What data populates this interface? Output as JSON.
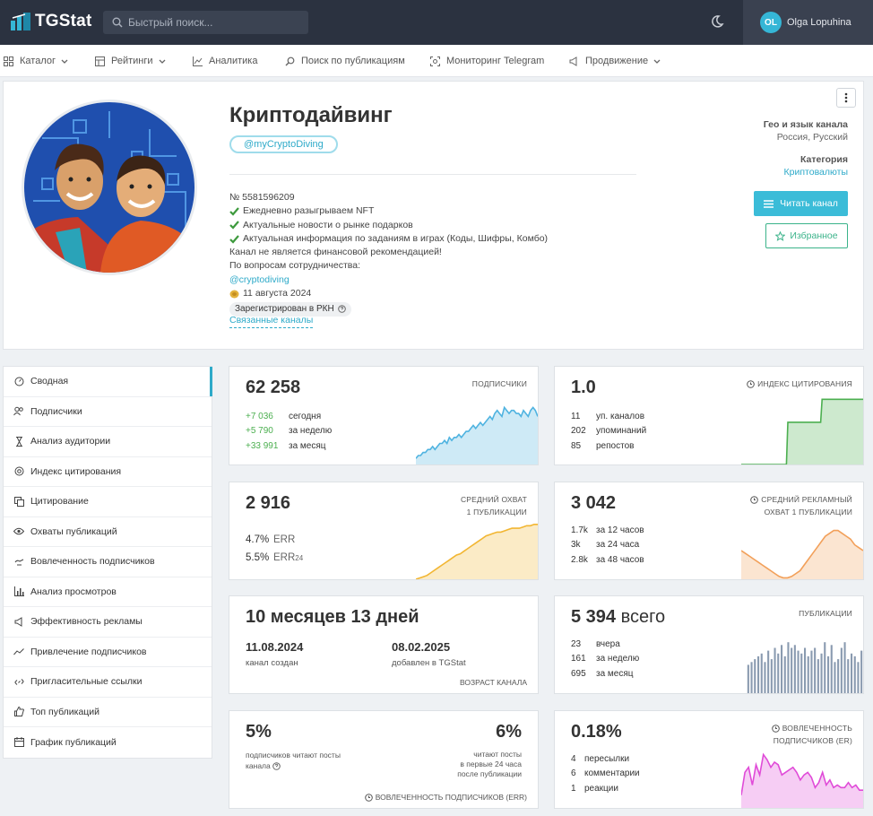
{
  "header": {
    "logo_text": "TGStat",
    "search_placeholder": "Быстрый поиск...",
    "user_initials": "OL",
    "user_name": "Olga Lopuhina",
    "accent": "#35b6d6"
  },
  "nav": {
    "catalog": "Каталог",
    "ratings": "Рейтинги",
    "analytics": "Аналитика",
    "search_pubs": "Поиск по публикациям",
    "monitoring": "Мониторинг Telegram",
    "promotion": "Продвижение"
  },
  "channel": {
    "title": "Криптодайвинг",
    "handle": "@myCryptoDiving",
    "number": "№ 5581596209",
    "lines": [
      "Ежедневно разыгрываем NFT",
      "Актуальные новости о рынке подарков",
      "Актуальная информация по заданиям в играх (Коды, Шифры, Комбо)"
    ],
    "disclaimer": "Канал не является финансовой рекомендацией!",
    "cooperation": "По вопросам сотрудничества:",
    "contact": "@cryptodiving",
    "date": "11 августа 2024",
    "rkn": "Зарегистрирован в РКН",
    "related": "Связанные каналы",
    "geo_label": "Гео и язык канала",
    "geo_value": "Россия, Русский",
    "category_label": "Категория",
    "category_value": "Криптовалюты",
    "read_button": "Читать канал",
    "fav_button": "Избранное"
  },
  "sidebar": {
    "items": [
      {
        "label": "Сводная",
        "icon": "dashboard-icon"
      },
      {
        "label": "Подписчики",
        "icon": "users-icon"
      },
      {
        "label": "Анализ аудитории",
        "icon": "hourglass-icon"
      },
      {
        "label": "Индекс цитирования",
        "icon": "at-icon"
      },
      {
        "label": "Цитирование",
        "icon": "copy-icon"
      },
      {
        "label": "Охваты публикаций",
        "icon": "eye-icon"
      },
      {
        "label": "Вовлеченность подписчиков",
        "icon": "hand-icon"
      },
      {
        "label": "Анализ просмотров",
        "icon": "bar-chart-icon"
      },
      {
        "label": "Эффективность рекламы",
        "icon": "megaphone-icon"
      },
      {
        "label": "Привлечение подписчиков",
        "icon": "trend-icon"
      },
      {
        "label": "Пригласительные ссылки",
        "icon": "link-icon"
      },
      {
        "label": "Топ публикаций",
        "icon": "thumbs-up-icon"
      },
      {
        "label": "График публикаций",
        "icon": "calendar-icon"
      }
    ]
  },
  "cards": {
    "subscribers": {
      "value": "62 258",
      "title": "ПОДПИСЧИКИ",
      "rows": [
        {
          "n": "+7 036",
          "t": "сегодня"
        },
        {
          "n": "+5 790",
          "t": "за неделю"
        },
        {
          "n": "+33 991",
          "t": "за месяц"
        }
      ]
    },
    "citation": {
      "value": "1.0",
      "title": "ИНДЕКС ЦИТИРОВАНИЯ",
      "rows": [
        {
          "n": "11",
          "t": "уп. каналов"
        },
        {
          "n": "202",
          "t": "упоминаний"
        },
        {
          "n": "85",
          "t": "репостов"
        }
      ]
    },
    "reach": {
      "value": "2 916",
      "title1": "СРЕДНИЙ ОХВАТ",
      "title2": "1 ПУБЛИКАЦИИ",
      "err_value": "4.7%",
      "err_label": "ERR",
      "err24_value": "5.5%",
      "err24_label": "ERR",
      "err24_sub": "24"
    },
    "ad_reach": {
      "value": "3 042",
      "title1": "СРЕДНИЙ РЕКЛАМНЫЙ",
      "title2": "ОХВАТ 1 ПУБЛИКАЦИИ",
      "rows": [
        {
          "n": "1.7k",
          "t": "за 12 часов"
        },
        {
          "n": "3k",
          "t": "за 24 часа"
        },
        {
          "n": "2.8k",
          "t": "за 48 часов"
        }
      ]
    },
    "age": {
      "value": "10 месяцев 13 дней",
      "created_date": "11.08.2024",
      "created_label": "канал создан",
      "added_date": "08.02.2025",
      "added_label": "добавлен в TGStat",
      "footer": "ВОЗРАСТ КАНАЛА"
    },
    "publications": {
      "value": "5 394",
      "value_suffix": "всего",
      "title": "ПУБЛИКАЦИИ",
      "rows": [
        {
          "n": "23",
          "t": "вчера"
        },
        {
          "n": "161",
          "t": "за неделю"
        },
        {
          "n": "695",
          "t": "за месяц"
        }
      ]
    },
    "engagement": {
      "left_value": "5%",
      "left_label1": "подписчиков читают посты",
      "left_label2": "канала",
      "right_value": "6%",
      "right_label1": "читают посты",
      "right_label2": "в первые 24 часа",
      "right_label3": "после публикации",
      "footer": "ВОВЛЕЧЕННОСТЬ ПОДПИСЧИКОВ (ERR)"
    },
    "er": {
      "value": "0.18%",
      "title1": "ВОВЛЕЧЕННОСТЬ",
      "title2": "ПОДПИСЧИКОВ (ER)",
      "rows": [
        {
          "n": "4",
          "t": "пересылки"
        },
        {
          "n": "6",
          "t": "комментарии"
        },
        {
          "n": "1",
          "t": "реакции"
        }
      ]
    }
  },
  "chart_data": [
    {
      "type": "area",
      "name": "subscribers",
      "color": "#4fb3e0",
      "values": [
        2,
        3,
        3,
        4,
        4,
        5,
        5,
        6,
        5,
        6,
        7,
        7,
        8,
        7,
        9,
        8,
        9,
        9,
        10,
        9,
        10,
        11,
        11,
        12,
        13,
        12,
        13,
        14,
        13,
        14,
        15,
        16,
        15,
        17,
        18,
        17,
        16,
        19,
        18,
        17,
        18,
        18,
        17,
        17,
        16,
        18,
        17,
        16,
        18,
        19,
        18,
        16
      ]
    },
    {
      "type": "area",
      "name": "citation",
      "color": "#4caf50",
      "values": [
        0,
        0,
        0,
        0,
        0,
        0,
        0,
        0,
        0,
        0,
        0,
        0,
        0,
        0,
        0,
        0,
        0,
        0,
        0,
        0,
        0,
        0,
        0,
        0,
        0,
        0,
        0,
        0,
        0,
        0,
        0,
        0,
        0,
        0,
        2.2,
        2.2,
        2.2,
        2.2,
        2.2,
        2.2,
        2.2,
        2.2,
        2.2,
        2.2,
        2.2,
        2.2,
        2.2,
        2.2,
        2.2,
        2.2,
        2.2,
        2.2,
        2.2,
        2.2,
        2.2,
        2.2,
        2.2,
        2.2,
        2.2,
        3.4,
        3.4,
        3.4,
        3.4,
        3.4,
        3.4,
        3.4,
        3.4,
        3.4,
        3.4,
        3.4,
        3.4,
        3.4,
        3.4,
        3.4,
        3.4,
        3.4,
        3.4,
        3.4,
        3.4,
        3.4,
        3.4,
        3.4,
        3.4,
        3.4,
        3.4,
        3.4,
        3.4,
        3.4,
        3.4,
        3.4
      ]
    },
    {
      "type": "area",
      "name": "reach",
      "color": "#f2b632",
      "values": [
        0,
        1,
        2,
        3,
        5,
        7,
        9,
        11,
        13,
        15,
        17,
        19,
        20,
        22,
        24,
        26,
        28,
        30,
        32,
        34,
        35,
        36,
        37,
        37,
        38,
        39,
        40,
        40,
        40,
        41,
        42,
        42,
        43,
        43
      ]
    },
    {
      "type": "area",
      "name": "ad_reach",
      "color": "#f2a05a",
      "values": [
        10,
        9,
        8,
        7,
        6,
        5,
        4,
        3,
        2,
        1,
        0.5,
        0.5,
        1,
        2,
        3,
        5,
        7,
        9,
        11,
        13,
        15,
        16,
        17,
        17,
        16,
        15,
        14,
        12,
        11,
        10
      ]
    },
    {
      "type": "bar",
      "name": "publications",
      "color": "#8a9bb0",
      "values": [
        10,
        11,
        12,
        13,
        14,
        11,
        15,
        12,
        16,
        14,
        17,
        13,
        18,
        16,
        17,
        15,
        14,
        16,
        13,
        15,
        16,
        12,
        14,
        18,
        13,
        17,
        11,
        12,
        16,
        18,
        12,
        14,
        13,
        11,
        15
      ]
    },
    {
      "type": "area",
      "name": "er",
      "color": "#e04bd8",
      "values": [
        5,
        14,
        16,
        9,
        17,
        13,
        21,
        19,
        16,
        18,
        17,
        13,
        14,
        15,
        16,
        14,
        11,
        13,
        14,
        12,
        8,
        10,
        14,
        9,
        11,
        8,
        9,
        8,
        8,
        10,
        8,
        9,
        7,
        7
      ]
    }
  ]
}
